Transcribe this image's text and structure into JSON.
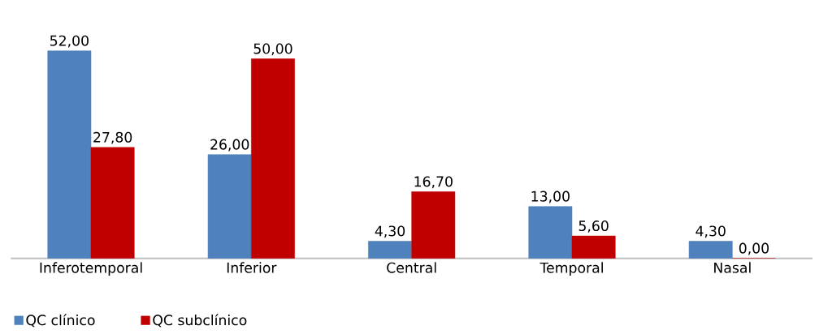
{
  "chart_data": {
    "type": "bar",
    "categories": [
      "Inferotemporal",
      "Inferior",
      "Central",
      "Temporal",
      "Nasal"
    ],
    "series": [
      {
        "name": "QC clínico",
        "color": "#4f81bd",
        "values": [
          52.0,
          26.0,
          4.3,
          13.0,
          4.3
        ],
        "value_labels": [
          "52,00",
          "26,00",
          "4,30",
          "13,00",
          "4,30"
        ]
      },
      {
        "name": "QC subclínico",
        "color": "#c00000",
        "values": [
          27.8,
          50.0,
          16.7,
          5.6,
          0.0
        ],
        "value_labels": [
          "27,80",
          "50,00",
          "16,70",
          "5,60",
          "0,00"
        ]
      }
    ],
    "legend": "bottom left"
  }
}
